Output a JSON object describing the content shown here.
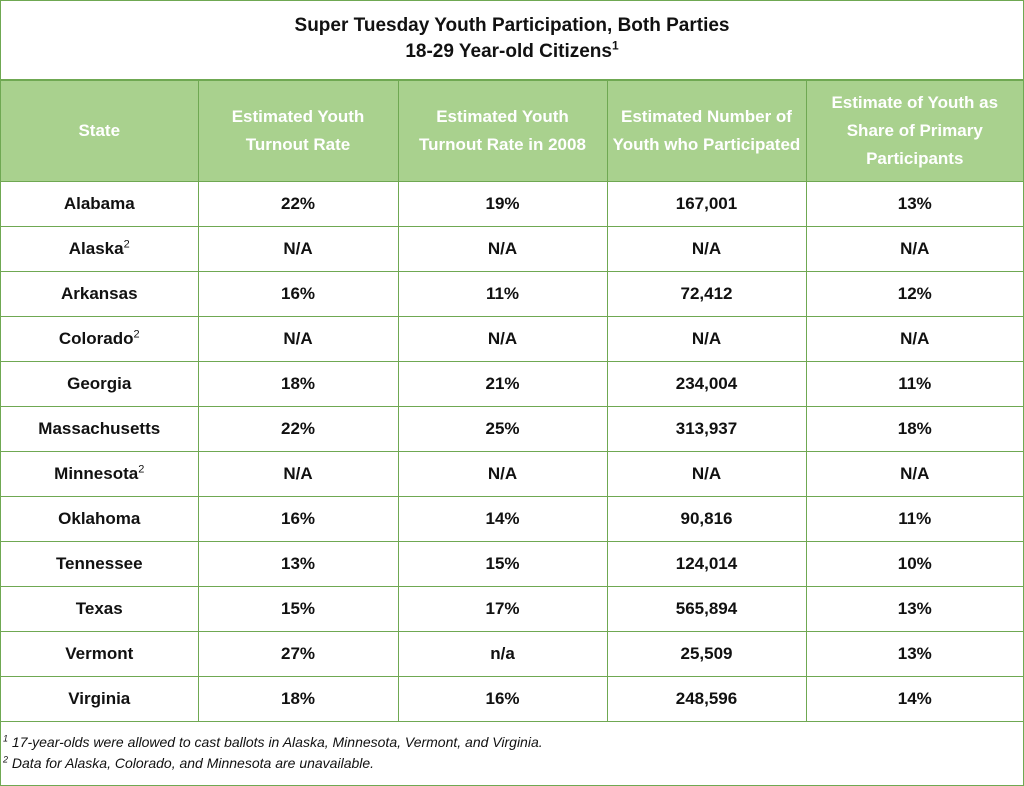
{
  "title": {
    "line1": "Super Tuesday Youth Participation, Both Parties",
    "line2": "18-29 Year-old Citizens",
    "line2_sup": "1"
  },
  "columns": [
    "State",
    "Estimated Youth Turnout Rate",
    "Estimated Youth Turnout Rate in 2008",
    "Estimated Number of Youth who Participated",
    "Estimate of Youth as Share of Primary Participants"
  ],
  "rows": [
    {
      "state": "Alabama",
      "sup": "",
      "rate": "22%",
      "rate2008": "19%",
      "number": "167,001",
      "share": "13%"
    },
    {
      "state": "Alaska",
      "sup": "2",
      "rate": "N/A",
      "rate2008": "N/A",
      "number": "N/A",
      "share": "N/A"
    },
    {
      "state": "Arkansas",
      "sup": "",
      "rate": "16%",
      "rate2008": "11%",
      "number": "72,412",
      "share": "12%"
    },
    {
      "state": "Colorado",
      "sup": "2",
      "rate": "N/A",
      "rate2008": "N/A",
      "number": "N/A",
      "share": "N/A"
    },
    {
      "state": "Georgia",
      "sup": "",
      "rate": "18%",
      "rate2008": "21%",
      "number": "234,004",
      "share": "11%"
    },
    {
      "state": "Massachusetts",
      "sup": "",
      "rate": "22%",
      "rate2008": "25%",
      "number": "313,937",
      "share": "18%"
    },
    {
      "state": "Minnesota",
      "sup": "2",
      "rate": "N/A",
      "rate2008": "N/A",
      "number": "N/A",
      "share": "N/A"
    },
    {
      "state": "Oklahoma",
      "sup": "",
      "rate": "16%",
      "rate2008": "14%",
      "number": "90,816",
      "share": "11%"
    },
    {
      "state": "Tennessee",
      "sup": "",
      "rate": "13%",
      "rate2008": "15%",
      "number": "124,014",
      "share": "10%"
    },
    {
      "state": "Texas",
      "sup": "",
      "rate": "15%",
      "rate2008": "17%",
      "number": "565,894",
      "share": "13%"
    },
    {
      "state": "Vermont",
      "sup": "",
      "rate": "27%",
      "rate2008": "n/a",
      "number": "25,509",
      "share": "13%"
    },
    {
      "state": "Virginia",
      "sup": "",
      "rate": "18%",
      "rate2008": "16%",
      "number": "248,596",
      "share": "14%"
    }
  ],
  "footnotes": [
    {
      "mark": "1",
      "text": " 17-year-olds were allowed to cast ballots in Alaska, Minnesota, Vermont, and Virginia."
    },
    {
      "mark": "2",
      "text": " Data for Alaska, Colorado, and Minnesota are unavailable."
    }
  ],
  "colors": {
    "header_bg": "#a9d18e",
    "border": "#6fa852",
    "header_text": "#ffffff"
  }
}
